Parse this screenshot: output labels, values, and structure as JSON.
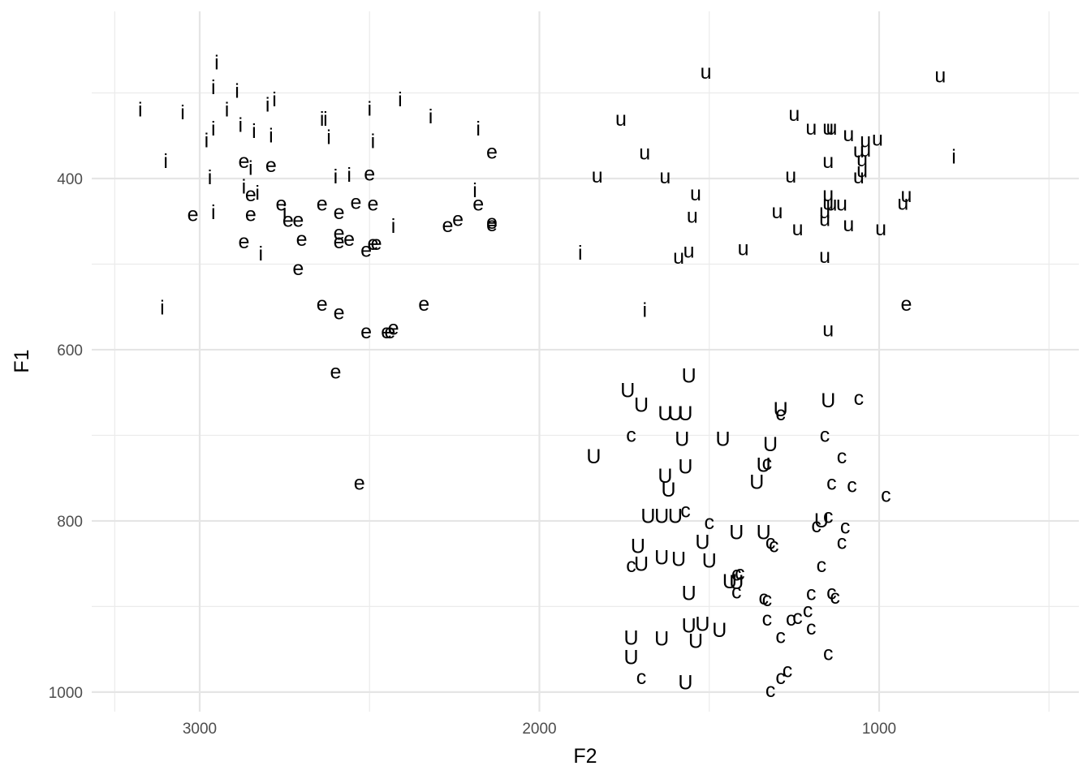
{
  "chart_data": {
    "type": "scatter",
    "title": "",
    "xlabel": "F2",
    "ylabel": "F1",
    "x_axis": {
      "reversed": true,
      "range": [
        3320,
        780
      ],
      "ticks": [
        3000,
        2000,
        1000
      ],
      "tick_labels": [
        "3000",
        "2000",
        "1000"
      ]
    },
    "y_axis": {
      "reversed": true,
      "range": [
        210,
        1025
      ],
      "ticks": [
        400,
        600,
        800,
        1000
      ],
      "tick_labels": [
        "400",
        "600",
        "800",
        "1000"
      ]
    },
    "grid": true,
    "legend": "none",
    "point_glyph": "vowel label",
    "series": [
      {
        "label": "i",
        "points": [
          [
            2950,
            265
          ],
          [
            2960,
            294
          ],
          [
            2890,
            298
          ],
          [
            2800,
            314
          ],
          [
            2780,
            308
          ],
          [
            3175,
            320
          ],
          [
            3050,
            323
          ],
          [
            2500,
            319
          ],
          [
            2410,
            308
          ],
          [
            2320,
            328
          ],
          [
            2180,
            342
          ],
          [
            2960,
            342
          ],
          [
            2880,
            338
          ],
          [
            2840,
            345
          ],
          [
            2790,
            350
          ],
          [
            2920,
            320
          ],
          [
            2640,
            331
          ],
          [
            2630,
            331
          ],
          [
            2620,
            352
          ],
          [
            2980,
            356
          ],
          [
            3100,
            380
          ],
          [
            2850,
            388
          ],
          [
            2560,
            396
          ],
          [
            2600,
            398
          ],
          [
            2970,
            399
          ],
          [
            2870,
            410
          ],
          [
            2830,
            417
          ],
          [
            2750,
            440
          ],
          [
            2960,
            440
          ],
          [
            2820,
            488
          ],
          [
            2430,
            456
          ],
          [
            2190,
            414
          ],
          [
            1880,
            487
          ],
          [
            3110,
            551
          ],
          [
            1690,
            554
          ],
          [
            780,
            375
          ],
          [
            2490,
            357
          ]
        ]
      },
      {
        "label": "e",
        "points": [
          [
            2870,
            380
          ],
          [
            2790,
            385
          ],
          [
            2500,
            395
          ],
          [
            2140,
            369
          ],
          [
            2850,
            419
          ],
          [
            2760,
            430
          ],
          [
            2640,
            430
          ],
          [
            2540,
            428
          ],
          [
            2490,
            430
          ],
          [
            2180,
            430
          ],
          [
            2590,
            440
          ],
          [
            3020,
            442
          ],
          [
            2850,
            442
          ],
          [
            2740,
            449
          ],
          [
            2710,
            449
          ],
          [
            2240,
            448
          ],
          [
            2140,
            451
          ],
          [
            2140,
            454
          ],
          [
            2270,
            455
          ],
          [
            2590,
            464
          ],
          [
            2590,
            474
          ],
          [
            2560,
            471
          ],
          [
            2700,
            471
          ],
          [
            2870,
            474
          ],
          [
            2480,
            476
          ],
          [
            2490,
            476
          ],
          [
            2510,
            484
          ],
          [
            2710,
            505
          ],
          [
            2640,
            547
          ],
          [
            2590,
            557
          ],
          [
            2510,
            579
          ],
          [
            2340,
            547
          ],
          [
            2440,
            579
          ],
          [
            2450,
            579
          ],
          [
            2430,
            575
          ],
          [
            2600,
            626
          ],
          [
            2530,
            756
          ],
          [
            920,
            547
          ]
        ]
      },
      {
        "label": "u",
        "points": [
          [
            1510,
            276
          ],
          [
            820,
            280
          ],
          [
            1760,
            331
          ],
          [
            1250,
            325
          ],
          [
            1200,
            341
          ],
          [
            1150,
            341
          ],
          [
            1140,
            341
          ],
          [
            1090,
            349
          ],
          [
            1005,
            354
          ],
          [
            1690,
            370
          ],
          [
            1060,
            368
          ],
          [
            1050,
            378
          ],
          [
            1150,
            380
          ],
          [
            1050,
            391
          ],
          [
            1830,
            397
          ],
          [
            1630,
            398
          ],
          [
            1260,
            397
          ],
          [
            1060,
            398
          ],
          [
            1540,
            418
          ],
          [
            1150,
            419
          ],
          [
            1150,
            429
          ],
          [
            1140,
            430
          ],
          [
            1110,
            430
          ],
          [
            1160,
            439
          ],
          [
            1550,
            444
          ],
          [
            1300,
            439
          ],
          [
            1090,
            454
          ],
          [
            1240,
            459
          ],
          [
            995,
            459
          ],
          [
            1160,
            448
          ],
          [
            1560,
            485
          ],
          [
            1400,
            482
          ],
          [
            1590,
            492
          ],
          [
            1160,
            491
          ],
          [
            930,
            429
          ],
          [
            920,
            420
          ],
          [
            1150,
            577
          ],
          [
            1040,
            356
          ],
          [
            1040,
            367
          ]
        ]
      },
      {
        "label": "U",
        "points": [
          [
            1560,
            631
          ],
          [
            1150,
            660
          ],
          [
            1290,
            670
          ],
          [
            1700,
            665
          ],
          [
            1630,
            675
          ],
          [
            1600,
            675
          ],
          [
            1570,
            675
          ],
          [
            1580,
            705
          ],
          [
            1460,
            705
          ],
          [
            1320,
            711
          ],
          [
            1340,
            735
          ],
          [
            1570,
            737
          ],
          [
            1630,
            748
          ],
          [
            1360,
            755
          ],
          [
            1620,
            764
          ],
          [
            1640,
            795
          ],
          [
            1680,
            795
          ],
          [
            1600,
            795
          ],
          [
            1340,
            814
          ],
          [
            1420,
            814
          ],
          [
            1170,
            800
          ],
          [
            1520,
            825
          ],
          [
            1710,
            830
          ],
          [
            1640,
            843
          ],
          [
            1590,
            845
          ],
          [
            1500,
            847
          ],
          [
            1700,
            851
          ],
          [
            1420,
            872
          ],
          [
            1560,
            885
          ],
          [
            1520,
            921
          ],
          [
            1560,
            923
          ],
          [
            1470,
            928
          ],
          [
            1730,
            937
          ],
          [
            1640,
            938
          ],
          [
            1540,
            941
          ],
          [
            1730,
            960
          ],
          [
            1570,
            989
          ],
          [
            1740,
            648
          ],
          [
            1840,
            725
          ],
          [
            1440,
            871
          ]
        ]
      },
      {
        "label": "c",
        "points": [
          [
            1060,
            657
          ],
          [
            1290,
            675
          ],
          [
            1160,
            700
          ],
          [
            1730,
            700
          ],
          [
            1110,
            725
          ],
          [
            1330,
            733
          ],
          [
            1140,
            756
          ],
          [
            1080,
            759
          ],
          [
            980,
            770
          ],
          [
            1570,
            788
          ],
          [
            1500,
            802
          ],
          [
            1150,
            795
          ],
          [
            1185,
            806
          ],
          [
            1100,
            807
          ],
          [
            1110,
            825
          ],
          [
            1320,
            825
          ],
          [
            1310,
            829
          ],
          [
            1170,
            852
          ],
          [
            1410,
            861
          ],
          [
            1420,
            862
          ],
          [
            1730,
            852
          ],
          [
            1420,
            883
          ],
          [
            1140,
            884
          ],
          [
            1340,
            890
          ],
          [
            1200,
            885
          ],
          [
            1130,
            889
          ],
          [
            1330,
            892
          ],
          [
            1330,
            915
          ],
          [
            1260,
            915
          ],
          [
            1210,
            905
          ],
          [
            1200,
            925
          ],
          [
            1240,
            913
          ],
          [
            1290,
            935
          ],
          [
            1150,
            955
          ],
          [
            1290,
            983
          ],
          [
            1270,
            975
          ],
          [
            1700,
            983
          ],
          [
            1320,
            998
          ]
        ]
      }
    ]
  }
}
